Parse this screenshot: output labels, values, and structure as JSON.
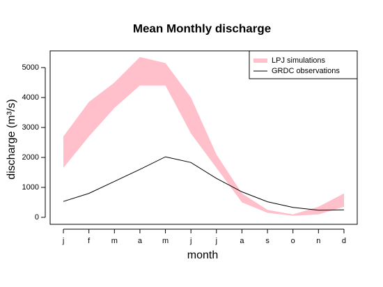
{
  "chart_data": {
    "type": "band-line",
    "title": "Mean Monthly discharge",
    "xlabel": "month",
    "ylabel": "discharge (m³/s)",
    "categories": [
      "j",
      "f",
      "m",
      "a",
      "m",
      "j",
      "j",
      "a",
      "s",
      "o",
      "n",
      "d"
    ],
    "series": [
      {
        "name": "LPJ simulations",
        "color": "#ffc0cb",
        "upper": [
          2700,
          3850,
          4500,
          5350,
          5150,
          4000,
          2100,
          800,
          250,
          100,
          350,
          800
        ],
        "lower": [
          1650,
          2700,
          3650,
          4400,
          4400,
          2800,
          1650,
          500,
          150,
          50,
          100,
          350
        ]
      },
      {
        "name": "GRDC observations",
        "color": "#000000",
        "values": [
          530,
          800,
          1200,
          1600,
          2020,
          1830,
          1300,
          850,
          520,
          330,
          240,
          250
        ]
      }
    ],
    "ylim": [
      -233,
      5558
    ],
    "yticks": [
      0,
      1000,
      2000,
      3000,
      4000,
      5000
    ],
    "legend": "top-right"
  }
}
